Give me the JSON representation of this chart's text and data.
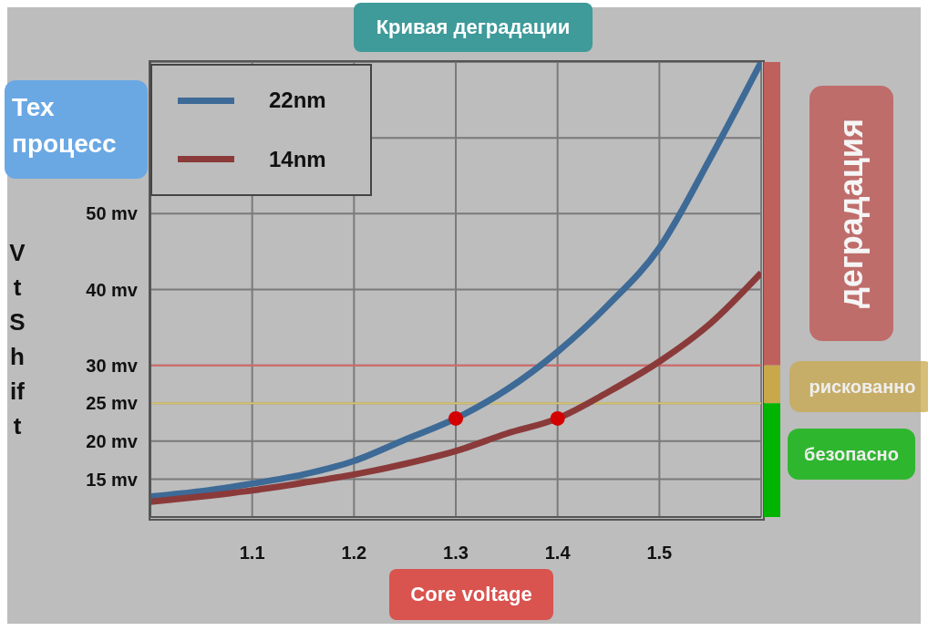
{
  "chart_data": {
    "type": "line",
    "title": "Кривая деградации",
    "xlabel": "Core voltage",
    "ylabel": "Vt Shift",
    "legend_title": "Тех процесс",
    "legend": "top left",
    "grid": true,
    "line_style": "solid",
    "xlim": [
      1.0,
      1.6
    ],
    "xticks": [
      1.1,
      1.2,
      1.3,
      1.4,
      1.5
    ],
    "ylim": [
      10,
      70
    ],
    "yticks": [
      {
        "value": 15,
        "label": "15 mv"
      },
      {
        "value": 20,
        "label": "20 mv"
      },
      {
        "value": 25,
        "label": "25 mv"
      },
      {
        "value": 30,
        "label": "30 mv"
      },
      {
        "value": 40,
        "label": "40 mv"
      },
      {
        "value": 50,
        "label": "50 mv"
      },
      {
        "value": 60,
        "label": null
      }
    ],
    "x": [
      1.0,
      1.05,
      1.1,
      1.15,
      1.2,
      1.25,
      1.3,
      1.35,
      1.4,
      1.45,
      1.5,
      1.55,
      1.6
    ],
    "series": [
      {
        "name": "22nm",
        "color": "#3d6a96",
        "values": [
          12.7,
          13.4,
          14.4,
          15.6,
          17.4,
          20.2,
          23.0,
          26.8,
          31.8,
          38.0,
          45.5,
          57.3,
          70
        ]
      },
      {
        "name": "14nm",
        "color": "#8b3a3a",
        "values": [
          12.0,
          12.7,
          13.5,
          14.5,
          15.6,
          17.0,
          18.7,
          21.0,
          23.0,
          26.5,
          30.5,
          35.5,
          42.2
        ]
      },
      {
        "type": "scatter",
        "color": "#d40000",
        "marker": "circle",
        "x": [
          1.3,
          1.4
        ],
        "values": [
          23.0,
          23.0
        ]
      }
    ],
    "ref_lines": [
      {
        "axis": "y",
        "value": 30,
        "color": "#d86a6a"
      },
      {
        "axis": "y",
        "value": 25,
        "color": "#d6c46a"
      }
    ],
    "annotations": [
      "деградация",
      "рискованно",
      "безопасно"
    ]
  }
}
